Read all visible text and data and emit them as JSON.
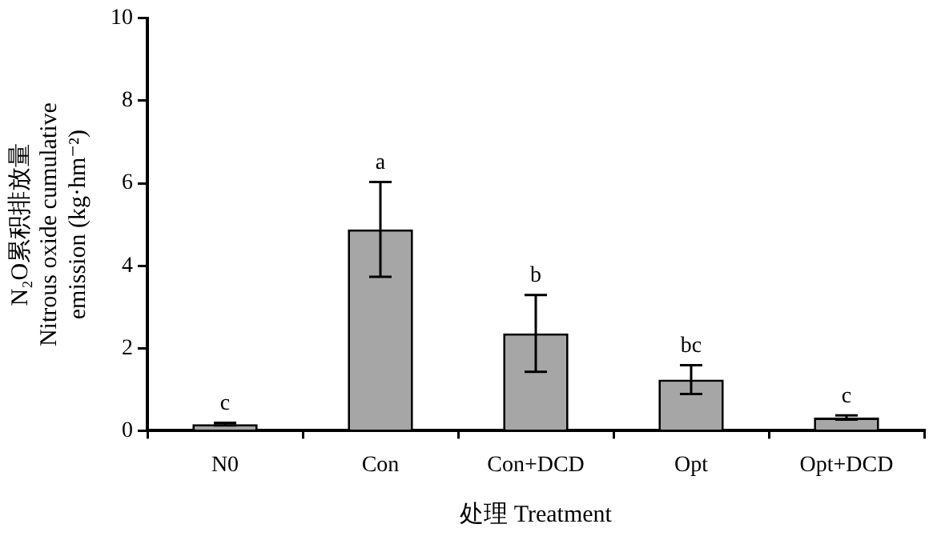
{
  "chart_data": {
    "type": "bar",
    "xlabel": "处理 Treatment",
    "ylabel": "N₂O累积排放量\nNitrous oxide cumulative\nemission (kg·hm⁻²)",
    "categories": [
      "N0",
      "Con",
      "Con+DCD",
      "Opt",
      "Opt+DCD"
    ],
    "values": [
      0.16,
      4.88,
      2.36,
      1.24,
      0.32
    ],
    "errors": [
      0.03,
      1.15,
      0.93,
      0.35,
      0.05
    ],
    "color": "#a6a6a6",
    "ylim": [
      0,
      10
    ],
    "yticks": [
      0,
      2,
      4,
      6,
      8,
      10
    ],
    "grid": false,
    "legend": false,
    "annotations": [
      {
        "text": "c",
        "x": "N0",
        "y": 0.19
      },
      {
        "text": "a",
        "x": "Con",
        "y": 6.03
      },
      {
        "text": "b",
        "x": "Con+DCD",
        "y": 3.29
      },
      {
        "text": "bc",
        "x": "Opt",
        "y": 1.59
      },
      {
        "text": "c",
        "x": "Opt+DCD",
        "y": 0.37
      }
    ]
  }
}
